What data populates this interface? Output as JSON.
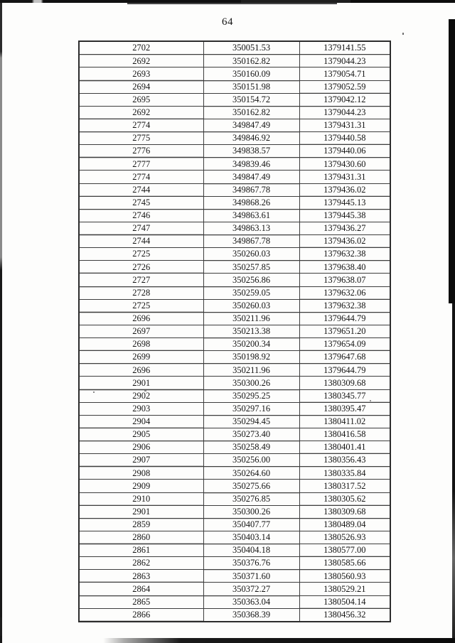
{
  "page": {
    "number": "64"
  },
  "colors": {
    "page_background": "#fdfdfc",
    "ink": "#141414",
    "table_border": "#3d3d3d"
  },
  "table": {
    "rows": [
      [
        "2702",
        "350051.53",
        "1379141.55"
      ],
      [
        "2692",
        "350162.82",
        "1379044.23"
      ],
      [
        "2693",
        "350160.09",
        "1379054.71"
      ],
      [
        "2694",
        "350151.98",
        "1379052.59"
      ],
      [
        "2695",
        "350154.72",
        "1379042.12"
      ],
      [
        "2692",
        "350162.82",
        "1379044.23"
      ],
      [
        "2774",
        "349847.49",
        "1379431.31"
      ],
      [
        "2775",
        "349846.92",
        "1379440.58"
      ],
      [
        "2776",
        "349838.57",
        "1379440.06"
      ],
      [
        "2777",
        "349839.46",
        "1379430.60"
      ],
      [
        "2774",
        "349847.49",
        "1379431.31"
      ],
      [
        "2744",
        "349867.78",
        "1379436.02"
      ],
      [
        "2745",
        "349868.26",
        "1379445.13"
      ],
      [
        "2746",
        "349863.61",
        "1379445.38"
      ],
      [
        "2747",
        "349863.13",
        "1379436.27"
      ],
      [
        "2744",
        "349867.78",
        "1379436.02"
      ],
      [
        "2725",
        "350260.03",
        "1379632.38"
      ],
      [
        "2726",
        "350257.85",
        "1379638.40"
      ],
      [
        "2727",
        "350256.86",
        "1379638.07"
      ],
      [
        "2728",
        "350259.05",
        "1379632.06"
      ],
      [
        "2725",
        "350260.03",
        "1379632.38"
      ],
      [
        "2696",
        "350211.96",
        "1379644.79"
      ],
      [
        "2697",
        "350213.38",
        "1379651.20"
      ],
      [
        "2698",
        "350200.34",
        "1379654.09"
      ],
      [
        "2699",
        "350198.92",
        "1379647.68"
      ],
      [
        "2696",
        "350211.96",
        "1379644.79"
      ],
      [
        "2901",
        "350300.26",
        "1380309.68"
      ],
      [
        "2902",
        "350295.25",
        "1380345.77"
      ],
      [
        "2903",
        "350297.16",
        "1380395.47"
      ],
      [
        "2904",
        "350294.45",
        "1380411.02"
      ],
      [
        "2905",
        "350273.40",
        "1380416.58"
      ],
      [
        "2906",
        "350258.49",
        "1380401.41"
      ],
      [
        "2907",
        "350256.00",
        "1380356.43"
      ],
      [
        "2908",
        "350264.60",
        "1380335.84"
      ],
      [
        "2909",
        "350275.66",
        "1380317.52"
      ],
      [
        "2910",
        "350276.85",
        "1380305.62"
      ],
      [
        "2901",
        "350300.26",
        "1380309.68"
      ],
      [
        "2859",
        "350407.77",
        "1380489.04"
      ],
      [
        "2860",
        "350403.14",
        "1380526.93"
      ],
      [
        "2861",
        "350404.18",
        "1380577.00"
      ],
      [
        "2862",
        "350376.76",
        "1380585.66"
      ],
      [
        "2863",
        "350371.60",
        "1380560.93"
      ],
      [
        "2864",
        "350372.27",
        "1380529.21"
      ],
      [
        "2865",
        "350363.04",
        "1380504.14"
      ],
      [
        "2866",
        "350368.39",
        "1380456.32"
      ]
    ]
  }
}
